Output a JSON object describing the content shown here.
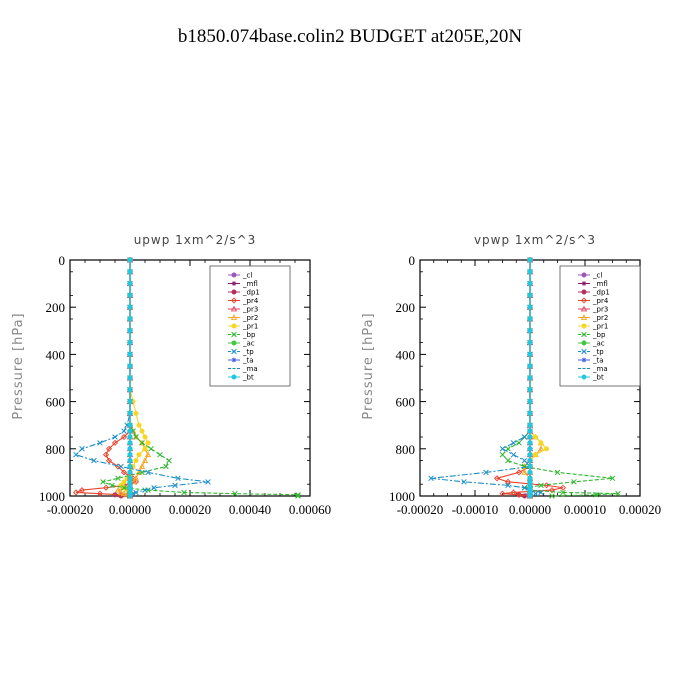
{
  "figure_title": "b1850.074base.colin2  BUDGET at205E,20N",
  "chart_data": [
    {
      "type": "line",
      "title": "upwp   1xm^2/s^3",
      "ylabel": "Pressure [hPa]",
      "xlabel": "",
      "xlim": [
        -0.0002,
        0.0006
      ],
      "ylim": [
        1000,
        0
      ],
      "xticks": [
        "-0.00020",
        "0.00000",
        "0.00020",
        "0.00040",
        "0.00060"
      ],
      "xtick_values": [
        -0.0002,
        0,
        0.0002,
        0.0004,
        0.0006
      ],
      "yticks": [
        "0",
        "200",
        "400",
        "600",
        "800",
        "1000"
      ],
      "ytick_values": [
        0,
        200,
        400,
        600,
        800,
        1000
      ],
      "legend_position": "top-right",
      "y": [
        0,
        50,
        100,
        150,
        200,
        250,
        300,
        350,
        400,
        450,
        500,
        550,
        600,
        650,
        700,
        725,
        750,
        775,
        800,
        825,
        850,
        875,
        900,
        925,
        940,
        955,
        965,
        975,
        985,
        990,
        995,
        1000
      ],
      "series": [
        {
          "name": "_cl",
          "color": "#9b59b6",
          "marker": "circle",
          "dash": "",
          "x": [
            0,
            0,
            0,
            0,
            0,
            0,
            0,
            0,
            0,
            0,
            0,
            0,
            0,
            0,
            0,
            0,
            0,
            0,
            0,
            0,
            0,
            0,
            0,
            0,
            0,
            0,
            0,
            0,
            0,
            0,
            0,
            0
          ]
        },
        {
          "name": "_mfl",
          "color": "#8b1a6b",
          "marker": "star",
          "dash": "",
          "x": [
            0,
            0,
            0,
            0,
            0,
            0,
            0,
            0,
            0,
            0,
            0,
            0,
            0,
            0,
            0,
            0,
            0,
            0,
            0,
            0,
            0,
            0,
            0,
            0,
            0,
            0,
            0,
            0,
            0,
            0,
            0,
            0
          ]
        },
        {
          "name": "_dp1",
          "color": "#b03060",
          "marker": "circle",
          "dash": "",
          "x": [
            0,
            0,
            0,
            0,
            0,
            0,
            0,
            0,
            0,
            0,
            0,
            0,
            0,
            0,
            0,
            0,
            0,
            0,
            0,
            0,
            0,
            0,
            0,
            0,
            0,
            0,
            0,
            0,
            0,
            0,
            -5e-05,
            -3e-05
          ]
        },
        {
          "name": "_pr4",
          "color": "#e8402a",
          "marker": "diamond",
          "dash": "",
          "x": [
            0,
            0,
            0,
            0,
            0,
            0,
            0,
            0,
            0,
            0,
            0,
            0,
            0,
            0,
            0,
            0,
            -2e-05,
            -5e-05,
            -7e-05,
            -8e-05,
            -7e-05,
            -4e-05,
            -2e-05,
            1e-05,
            2e-05,
            -2e-05,
            -8e-05,
            -0.00016,
            -0.00018,
            -0.0001,
            -3e-05,
            0
          ]
        },
        {
          "name": "_pr3",
          "color": "#e84060",
          "marker": "triangle",
          "dash": "",
          "x": [
            0,
            0,
            0,
            0,
            0,
            0,
            0,
            0,
            0,
            0,
            0,
            0,
            0,
            0,
            0,
            0,
            0,
            0,
            0,
            0,
            0,
            0,
            0,
            0,
            0,
            0,
            0,
            0,
            0,
            0,
            0,
            0
          ]
        },
        {
          "name": "_pr2",
          "color": "#f5a623",
          "marker": "triangle",
          "dash": "",
          "x": [
            0,
            0,
            0,
            0,
            0,
            0,
            0,
            0,
            0,
            0,
            0,
            0,
            0,
            0,
            0,
            1e-05,
            2e-05,
            4e-05,
            5e-05,
            6e-05,
            5e-05,
            4e-05,
            3e-05,
            2e-05,
            1e-05,
            0,
            -2e-05,
            -4e-05,
            -3e-05,
            -2e-05,
            -1e-05,
            0
          ]
        },
        {
          "name": "_pr1",
          "color": "#f5d623",
          "marker": "circle",
          "dash": "",
          "x": [
            0,
            0,
            0,
            0,
            0,
            0,
            0,
            0,
            0,
            0,
            0,
            0,
            1e-05,
            2e-05,
            3e-05,
            4e-05,
            5e-05,
            6e-05,
            5e-05,
            3e-05,
            2e-05,
            1e-05,
            0,
            -1e-05,
            -2e-05,
            -3e-05,
            -2e-05,
            -1e-05,
            0,
            0,
            0,
            0
          ]
        },
        {
          "name": "_bp",
          "color": "#2db82d",
          "marker": "x",
          "dash": "4,2",
          "x": [
            0,
            0,
            0,
            0,
            0,
            0,
            0,
            0,
            0,
            0,
            0,
            0,
            0,
            0,
            0,
            1e-05,
            2e-05,
            4e-05,
            7e-05,
            0.0001,
            0.00013,
            0.00012,
            4e-05,
            -4e-05,
            -9e-05,
            -6e-05,
            -2e-05,
            6e-05,
            0.00018,
            0.00035,
            0.00056,
            0.00056
          ]
        },
        {
          "name": "_ac",
          "color": "#40c840",
          "marker": "circle",
          "dash": "",
          "x": [
            0,
            0,
            0,
            0,
            0,
            0,
            0,
            0,
            0,
            0,
            0,
            0,
            0,
            0,
            0,
            0,
            0,
            0,
            0,
            0,
            0,
            0,
            0,
            0,
            0,
            0,
            0,
            0,
            0,
            0,
            0,
            0
          ]
        },
        {
          "name": "_tp",
          "color": "#1e90c8",
          "marker": "x",
          "dash": "6,2,2,2",
          "x": [
            0,
            0,
            0,
            0,
            0,
            0,
            0,
            0,
            0,
            0,
            0,
            0,
            0,
            0,
            -1e-05,
            -2e-05,
            -5e-05,
            -0.0001,
            -0.00016,
            -0.00018,
            -0.00012,
            -3e-05,
            6e-05,
            0.00016,
            0.00026,
            0.00015,
            8e-05,
            5e-05,
            2e-05,
            1e-05,
            0,
            0
          ]
        },
        {
          "name": "_ta",
          "color": "#4060e0",
          "marker": "star",
          "dash": "",
          "x": [
            0,
            0,
            0,
            0,
            0,
            0,
            0,
            0,
            0,
            0,
            0,
            0,
            0,
            0,
            0,
            0,
            0,
            0,
            0,
            0,
            0,
            0,
            0,
            0,
            0,
            0,
            0,
            0,
            0,
            0,
            0,
            0
          ]
        },
        {
          "name": "_ma",
          "color": "#1a8ab0",
          "marker": "none",
          "dash": "6,3",
          "x": [
            0,
            0,
            0,
            0,
            0,
            0,
            0,
            0,
            0,
            0,
            0,
            0,
            0,
            0,
            0,
            0,
            0,
            0,
            0,
            0,
            0,
            0,
            0,
            0,
            0,
            0,
            0,
            0,
            0,
            0,
            0,
            0
          ]
        },
        {
          "name": "_bt",
          "color": "#20c8e0",
          "marker": "circle",
          "dash": "",
          "x": [
            0,
            0,
            0,
            0,
            0,
            0,
            0,
            0,
            0,
            0,
            0,
            0,
            0,
            0,
            0,
            0,
            0,
            0,
            0,
            0,
            0,
            0,
            0,
            0,
            0,
            0,
            0,
            0,
            0,
            0,
            0,
            0
          ]
        }
      ]
    },
    {
      "type": "line",
      "title": "vpwp   1xm^2/s^3",
      "ylabel": "Pressure [hPa]",
      "xlabel": "",
      "xlim": [
        -0.0002,
        0.0002
      ],
      "ylim": [
        1000,
        0
      ],
      "xticks": [
        "-0.00020",
        "-0.00010",
        "0.00000",
        "0.00010",
        "0.00020"
      ],
      "xtick_values": [
        -0.0002,
        -0.0001,
        0,
        0.0001,
        0.0002
      ],
      "yticks": [
        "0",
        "200",
        "400",
        "600",
        "800",
        "1000"
      ],
      "ytick_values": [
        0,
        200,
        400,
        600,
        800,
        1000
      ],
      "legend_position": "top-right",
      "y": [
        0,
        50,
        100,
        150,
        200,
        250,
        300,
        350,
        400,
        450,
        500,
        550,
        600,
        650,
        700,
        725,
        750,
        775,
        800,
        825,
        850,
        875,
        900,
        925,
        940,
        955,
        965,
        975,
        985,
        990,
        995,
        1000
      ],
      "series": [
        {
          "name": "_cl",
          "color": "#9b59b6",
          "marker": "circle",
          "dash": "",
          "x": [
            0,
            0,
            0,
            0,
            0,
            0,
            0,
            0,
            0,
            0,
            0,
            0,
            0,
            0,
            0,
            0,
            0,
            0,
            0,
            0,
            0,
            0,
            0,
            0,
            0,
            0,
            0,
            0,
            0,
            0,
            0,
            0
          ]
        },
        {
          "name": "_mfl",
          "color": "#8b1a6b",
          "marker": "star",
          "dash": "",
          "x": [
            0,
            0,
            0,
            0,
            0,
            0,
            0,
            0,
            0,
            0,
            0,
            0,
            0,
            0,
            0,
            0,
            0,
            0,
            0,
            0,
            0,
            0,
            0,
            0,
            0,
            0,
            0,
            0,
            0,
            0,
            0,
            0
          ]
        },
        {
          "name": "_dp1",
          "color": "#b03060",
          "marker": "circle",
          "dash": "",
          "x": [
            0,
            0,
            0,
            0,
            0,
            0,
            0,
            0,
            0,
            0,
            0,
            0,
            0,
            0,
            0,
            0,
            0,
            0,
            0,
            0,
            0,
            0,
            0,
            0,
            0,
            0,
            0,
            0,
            0,
            0,
            -2e-05,
            -1e-05
          ]
        },
        {
          "name": "_pr4",
          "color": "#e8402a",
          "marker": "diamond",
          "dash": "",
          "x": [
            0,
            0,
            0,
            0,
            0,
            0,
            0,
            0,
            0,
            0,
            0,
            0,
            0,
            0,
            0,
            0,
            0,
            0,
            0,
            0,
            0,
            0,
            -2e-05,
            -6e-05,
            -4e-05,
            3e-05,
            6e-05,
            4e-05,
            -3e-05,
            -5e-05,
            -2e-05,
            0
          ]
        },
        {
          "name": "_pr3",
          "color": "#e84060",
          "marker": "triangle",
          "dash": "",
          "x": [
            0,
            0,
            0,
            0,
            0,
            0,
            0,
            0,
            0,
            0,
            0,
            0,
            0,
            0,
            0,
            0,
            0,
            0,
            0,
            0,
            0,
            0,
            0,
            0,
            0,
            0,
            0,
            0,
            0,
            0,
            0,
            0
          ]
        },
        {
          "name": "_pr2",
          "color": "#f5a623",
          "marker": "triangle",
          "dash": "",
          "x": [
            0,
            0,
            0,
            0,
            0,
            0,
            0,
            0,
            0,
            0,
            0,
            0,
            0,
            0,
            0,
            0,
            1e-05,
            2e-05,
            2e-05,
            1e-05,
            0,
            -1e-05,
            -1e-05,
            0,
            0,
            0,
            0,
            0,
            0,
            0,
            0,
            0
          ]
        },
        {
          "name": "_pr1",
          "color": "#f5d623",
          "marker": "circle",
          "dash": "",
          "x": [
            0,
            0,
            0,
            0,
            0,
            0,
            0,
            0,
            0,
            0,
            0,
            0,
            0,
            0,
            0,
            0,
            1e-05,
            2e-05,
            3e-05,
            1e-05,
            0,
            0,
            0,
            0,
            0,
            0,
            0,
            0,
            0,
            0,
            0,
            0
          ]
        },
        {
          "name": "_bp",
          "color": "#2db82d",
          "marker": "x",
          "dash": "4,2",
          "x": [
            0,
            0,
            0,
            0,
            0,
            0,
            0,
            0,
            0,
            0,
            0,
            0,
            0,
            0,
            0,
            0,
            -1e-05,
            -2e-05,
            -4e-05,
            -5e-05,
            -4e-05,
            -1e-05,
            5e-05,
            0.00015,
            8e-05,
            2e-05,
            -1e-05,
            0,
            6e-05,
            0.00016,
            0.00012,
            4e-05
          ]
        },
        {
          "name": "_ac",
          "color": "#40c840",
          "marker": "circle",
          "dash": "",
          "x": [
            0,
            0,
            0,
            0,
            0,
            0,
            0,
            0,
            0,
            0,
            0,
            0,
            0,
            0,
            0,
            0,
            0,
            0,
            0,
            0,
            0,
            0,
            0,
            0,
            0,
            0,
            0,
            0,
            0,
            0,
            0,
            0
          ]
        },
        {
          "name": "_tp",
          "color": "#1e90c8",
          "marker": "x",
          "dash": "6,2,2,2",
          "x": [
            0,
            0,
            0,
            0,
            0,
            0,
            0,
            0,
            0,
            0,
            0,
            0,
            0,
            0,
            0,
            0,
            -1e-05,
            -3e-05,
            -5e-05,
            -3e-05,
            -1e-05,
            0,
            -8e-05,
            -0.00018,
            -0.00012,
            -4e-05,
            -1e-05,
            0,
            2e-05,
            1e-05,
            0,
            0
          ]
        },
        {
          "name": "_ta",
          "color": "#4060e0",
          "marker": "star",
          "dash": "",
          "x": [
            0,
            0,
            0,
            0,
            0,
            0,
            0,
            0,
            0,
            0,
            0,
            0,
            0,
            0,
            0,
            0,
            0,
            0,
            0,
            0,
            0,
            0,
            0,
            0,
            0,
            0,
            0,
            0,
            0,
            0,
            0,
            0
          ]
        },
        {
          "name": "_ma",
          "color": "#1a8ab0",
          "marker": "none",
          "dash": "6,3",
          "x": [
            0,
            0,
            0,
            0,
            0,
            0,
            0,
            0,
            0,
            0,
            0,
            0,
            0,
            0,
            0,
            0,
            0,
            0,
            0,
            0,
            0,
            0,
            0,
            0,
            0,
            0,
            0,
            0,
            0,
            0,
            0,
            0
          ]
        },
        {
          "name": "_bt",
          "color": "#20c8e0",
          "marker": "circle",
          "dash": "",
          "x": [
            0,
            0,
            0,
            0,
            0,
            0,
            0,
            0,
            0,
            0,
            0,
            0,
            0,
            0,
            0,
            0,
            0,
            0,
            0,
            0,
            0,
            0,
            0,
            0,
            0,
            0,
            0,
            0,
            0,
            0,
            0,
            0
          ]
        }
      ]
    }
  ]
}
